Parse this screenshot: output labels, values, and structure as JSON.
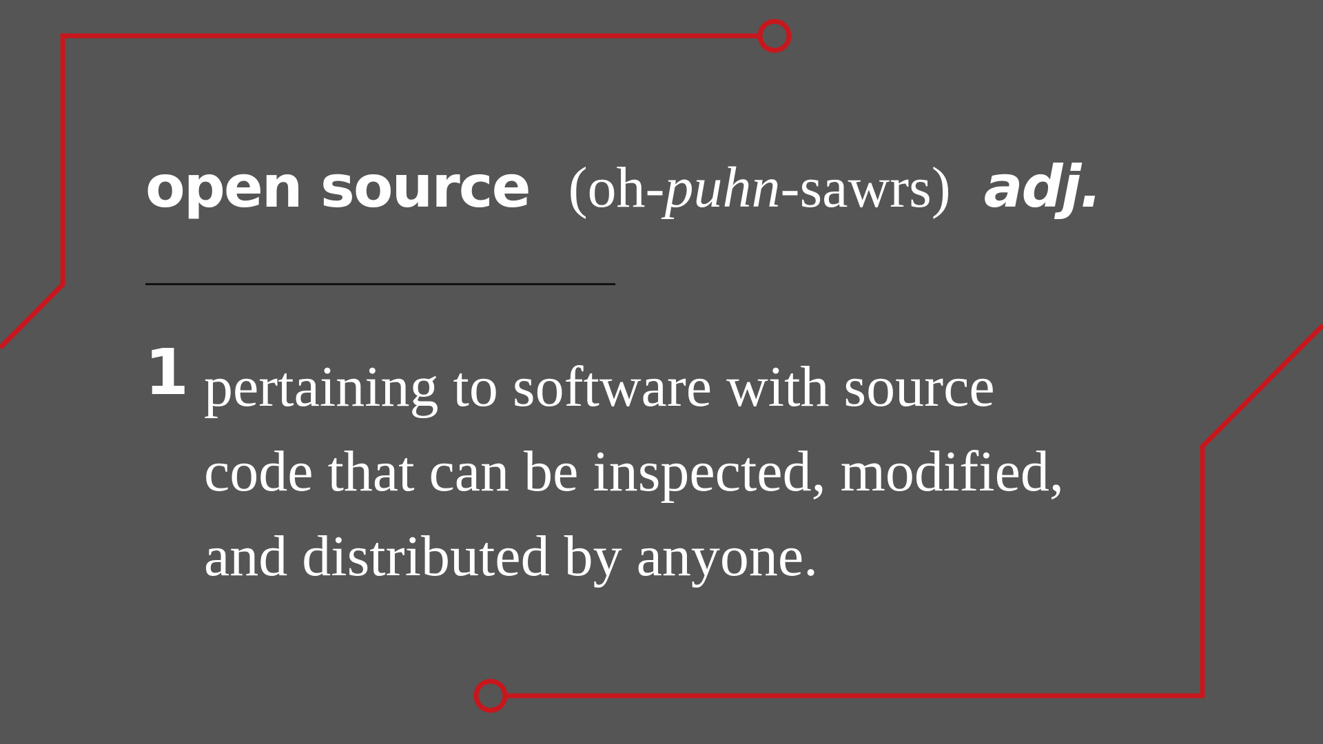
{
  "colors": {
    "background": "#555555",
    "circuit_line": "#c8161d",
    "text": "#ffffff",
    "divider": "#111111"
  },
  "entry": {
    "headword": "open source",
    "pronunciation": {
      "open": "(oh-",
      "stressed": "puhn",
      "close": "-sawrs)"
    },
    "part_of_speech": "adj.",
    "sense_number": "1",
    "definition_lines": [
      "pertaining to software with source",
      "code that can be inspected, modified,",
      "and distributed by anyone."
    ]
  },
  "decoration": {
    "circuit_traces": "circuit-trace-lines",
    "node_icon": "ring-node-icon"
  }
}
